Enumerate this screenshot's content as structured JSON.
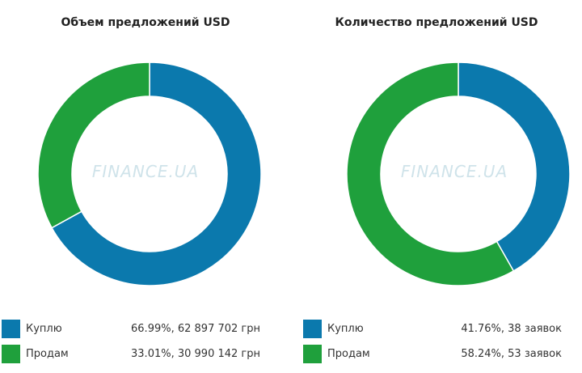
{
  "chart_data": [
    {
      "type": "pie",
      "title": "Объем предложений USD",
      "watermark": "FINANCE.UA",
      "series": [
        {
          "name": "Куплю",
          "value": 66.99,
          "label": "66.99%, 62 897 702 грн",
          "color": "#0b79ad"
        },
        {
          "name": "Продам",
          "value": 33.01,
          "label": "33.01%, 30 990 142 грн",
          "color": "#1fa03c"
        }
      ]
    },
    {
      "type": "pie",
      "title": "Количество предложений USD",
      "watermark": "FINANCE.UA",
      "series": [
        {
          "name": "Куплю",
          "value": 41.76,
          "label": "41.76%, 38 заявок",
          "color": "#0b79ad"
        },
        {
          "name": "Продам",
          "value": 58.24,
          "label": "58.24%, 53 заявок",
          "color": "#1fa03c"
        }
      ]
    }
  ]
}
